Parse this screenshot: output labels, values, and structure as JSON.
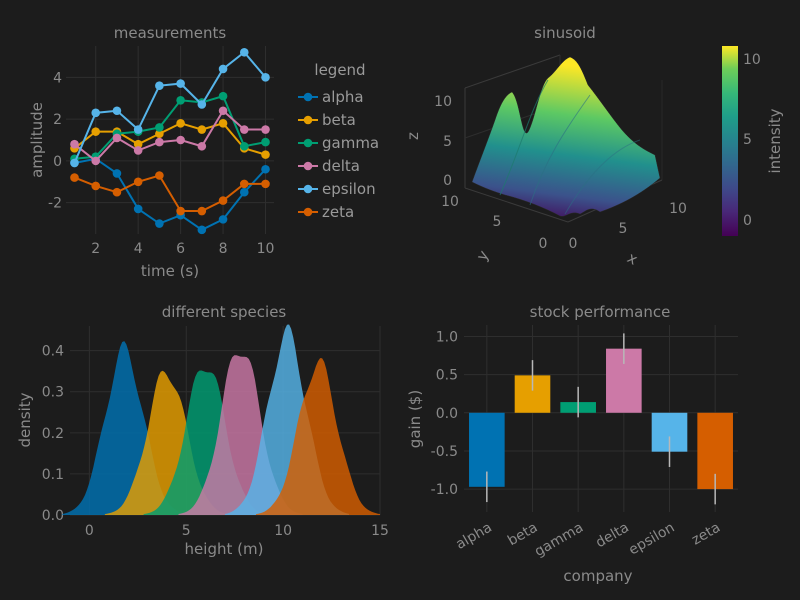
{
  "colors": {
    "background": "#1c1c1c",
    "text": "#8a8a8a",
    "alpha": "#0072b2",
    "beta": "#e69f00",
    "gamma": "#009e73",
    "delta": "#cc79a7",
    "epsilon": "#56b4e9",
    "zeta": "#d55e00"
  },
  "chart_data": [
    {
      "type": "line",
      "title": "measurements",
      "xlabel": "time (s)",
      "ylabel": "amplitude",
      "xlim": [
        0.6,
        10.4
      ],
      "ylim": [
        -3.5,
        5.5
      ],
      "xticks": [
        2,
        4,
        6,
        8,
        10
      ],
      "yticks": [
        4,
        2,
        0,
        -2
      ],
      "grid": true,
      "legend_title": "legend",
      "legend_placement": "right",
      "x": [
        1,
        2,
        3,
        4,
        5,
        6,
        7,
        8,
        9,
        10
      ],
      "series": [
        {
          "name": "alpha",
          "color": "#0072b2",
          "values": [
            -0.1,
            0.1,
            -0.6,
            -2.3,
            -3.0,
            -2.6,
            -3.3,
            -2.8,
            -1.5,
            -0.4
          ]
        },
        {
          "name": "beta",
          "color": "#e69f00",
          "values": [
            0.6,
            1.4,
            1.4,
            0.8,
            1.3,
            1.8,
            1.5,
            1.8,
            0.6,
            0.3
          ]
        },
        {
          "name": "gamma",
          "color": "#009e73",
          "values": [
            0.1,
            0.2,
            1.3,
            1.4,
            1.6,
            2.9,
            2.8,
            3.1,
            0.7,
            0.9
          ]
        },
        {
          "name": "delta",
          "color": "#cc79a7",
          "values": [
            0.8,
            0.0,
            1.1,
            0.5,
            0.9,
            1.0,
            0.7,
            2.4,
            1.5,
            1.5
          ]
        },
        {
          "name": "epsilon",
          "color": "#56b4e9",
          "values": [
            -0.1,
            2.3,
            2.4,
            1.5,
            3.6,
            3.7,
            2.7,
            4.4,
            5.2,
            4.0
          ]
        },
        {
          "name": "zeta",
          "color": "#d55e00",
          "values": [
            -0.8,
            -1.2,
            -1.5,
            -1.0,
            -0.7,
            -2.4,
            -2.4,
            -1.9,
            -1.1,
            -1.1
          ]
        }
      ]
    },
    {
      "type": "surface",
      "title": "sinusoid",
      "xlabel": "x",
      "ylabel": "y",
      "zlabel": "z",
      "xticks": [
        0,
        5,
        10
      ],
      "yticks": [
        0,
        5,
        10
      ],
      "zticks": [
        0,
        5,
        10
      ],
      "xlim": [
        0,
        12
      ],
      "ylim": [
        0,
        12
      ],
      "zlim": [
        -1,
        11
      ],
      "colorbar": {
        "label": "intensity",
        "ticks": [
          10,
          5,
          0
        ],
        "range": [
          -1,
          11
        ],
        "colormap": "viridis"
      }
    },
    {
      "type": "area",
      "title": "different species",
      "xlabel": "height (m)",
      "ylabel": "density",
      "xlim": [
        -1,
        15
      ],
      "ylim": [
        0,
        0.46
      ],
      "xticks": [
        0,
        5,
        10,
        15
      ],
      "yticks": [
        0.4,
        0.3,
        0.2,
        0.1,
        0.0
      ],
      "grid": true,
      "series": [
        {
          "color": "#0072b2",
          "center": 1.8,
          "peak": 0.4
        },
        {
          "color": "#e69f00",
          "center": 4.0,
          "peak": 0.35
        },
        {
          "color": "#009e73",
          "center": 6.0,
          "peak": 0.37
        },
        {
          "color": "#cc79a7",
          "center": 7.8,
          "peak": 0.41
        },
        {
          "color": "#56b4e9",
          "center": 10.2,
          "peak": 0.44
        },
        {
          "color": "#d55e00",
          "center": 11.8,
          "peak": 0.37
        }
      ]
    },
    {
      "type": "bar",
      "title": "stock performance",
      "xlabel": "company",
      "ylabel": "gain ($)",
      "ylim": [
        -1.3,
        1.15
      ],
      "yticks": [
        1.0,
        0.5,
        0.0,
        -0.5,
        -1.0
      ],
      "grid": true,
      "categories": [
        "alpha",
        "beta",
        "gamma",
        "delta",
        "epsilon",
        "zeta"
      ],
      "values": [
        -0.97,
        0.49,
        0.14,
        0.84,
        -0.51,
        -1.0
      ],
      "errors": [
        0.2,
        0.2,
        0.2,
        0.2,
        0.2,
        0.2
      ],
      "colors": [
        "#0072b2",
        "#e69f00",
        "#009e73",
        "#cc79a7",
        "#56b4e9",
        "#d55e00"
      ]
    }
  ]
}
